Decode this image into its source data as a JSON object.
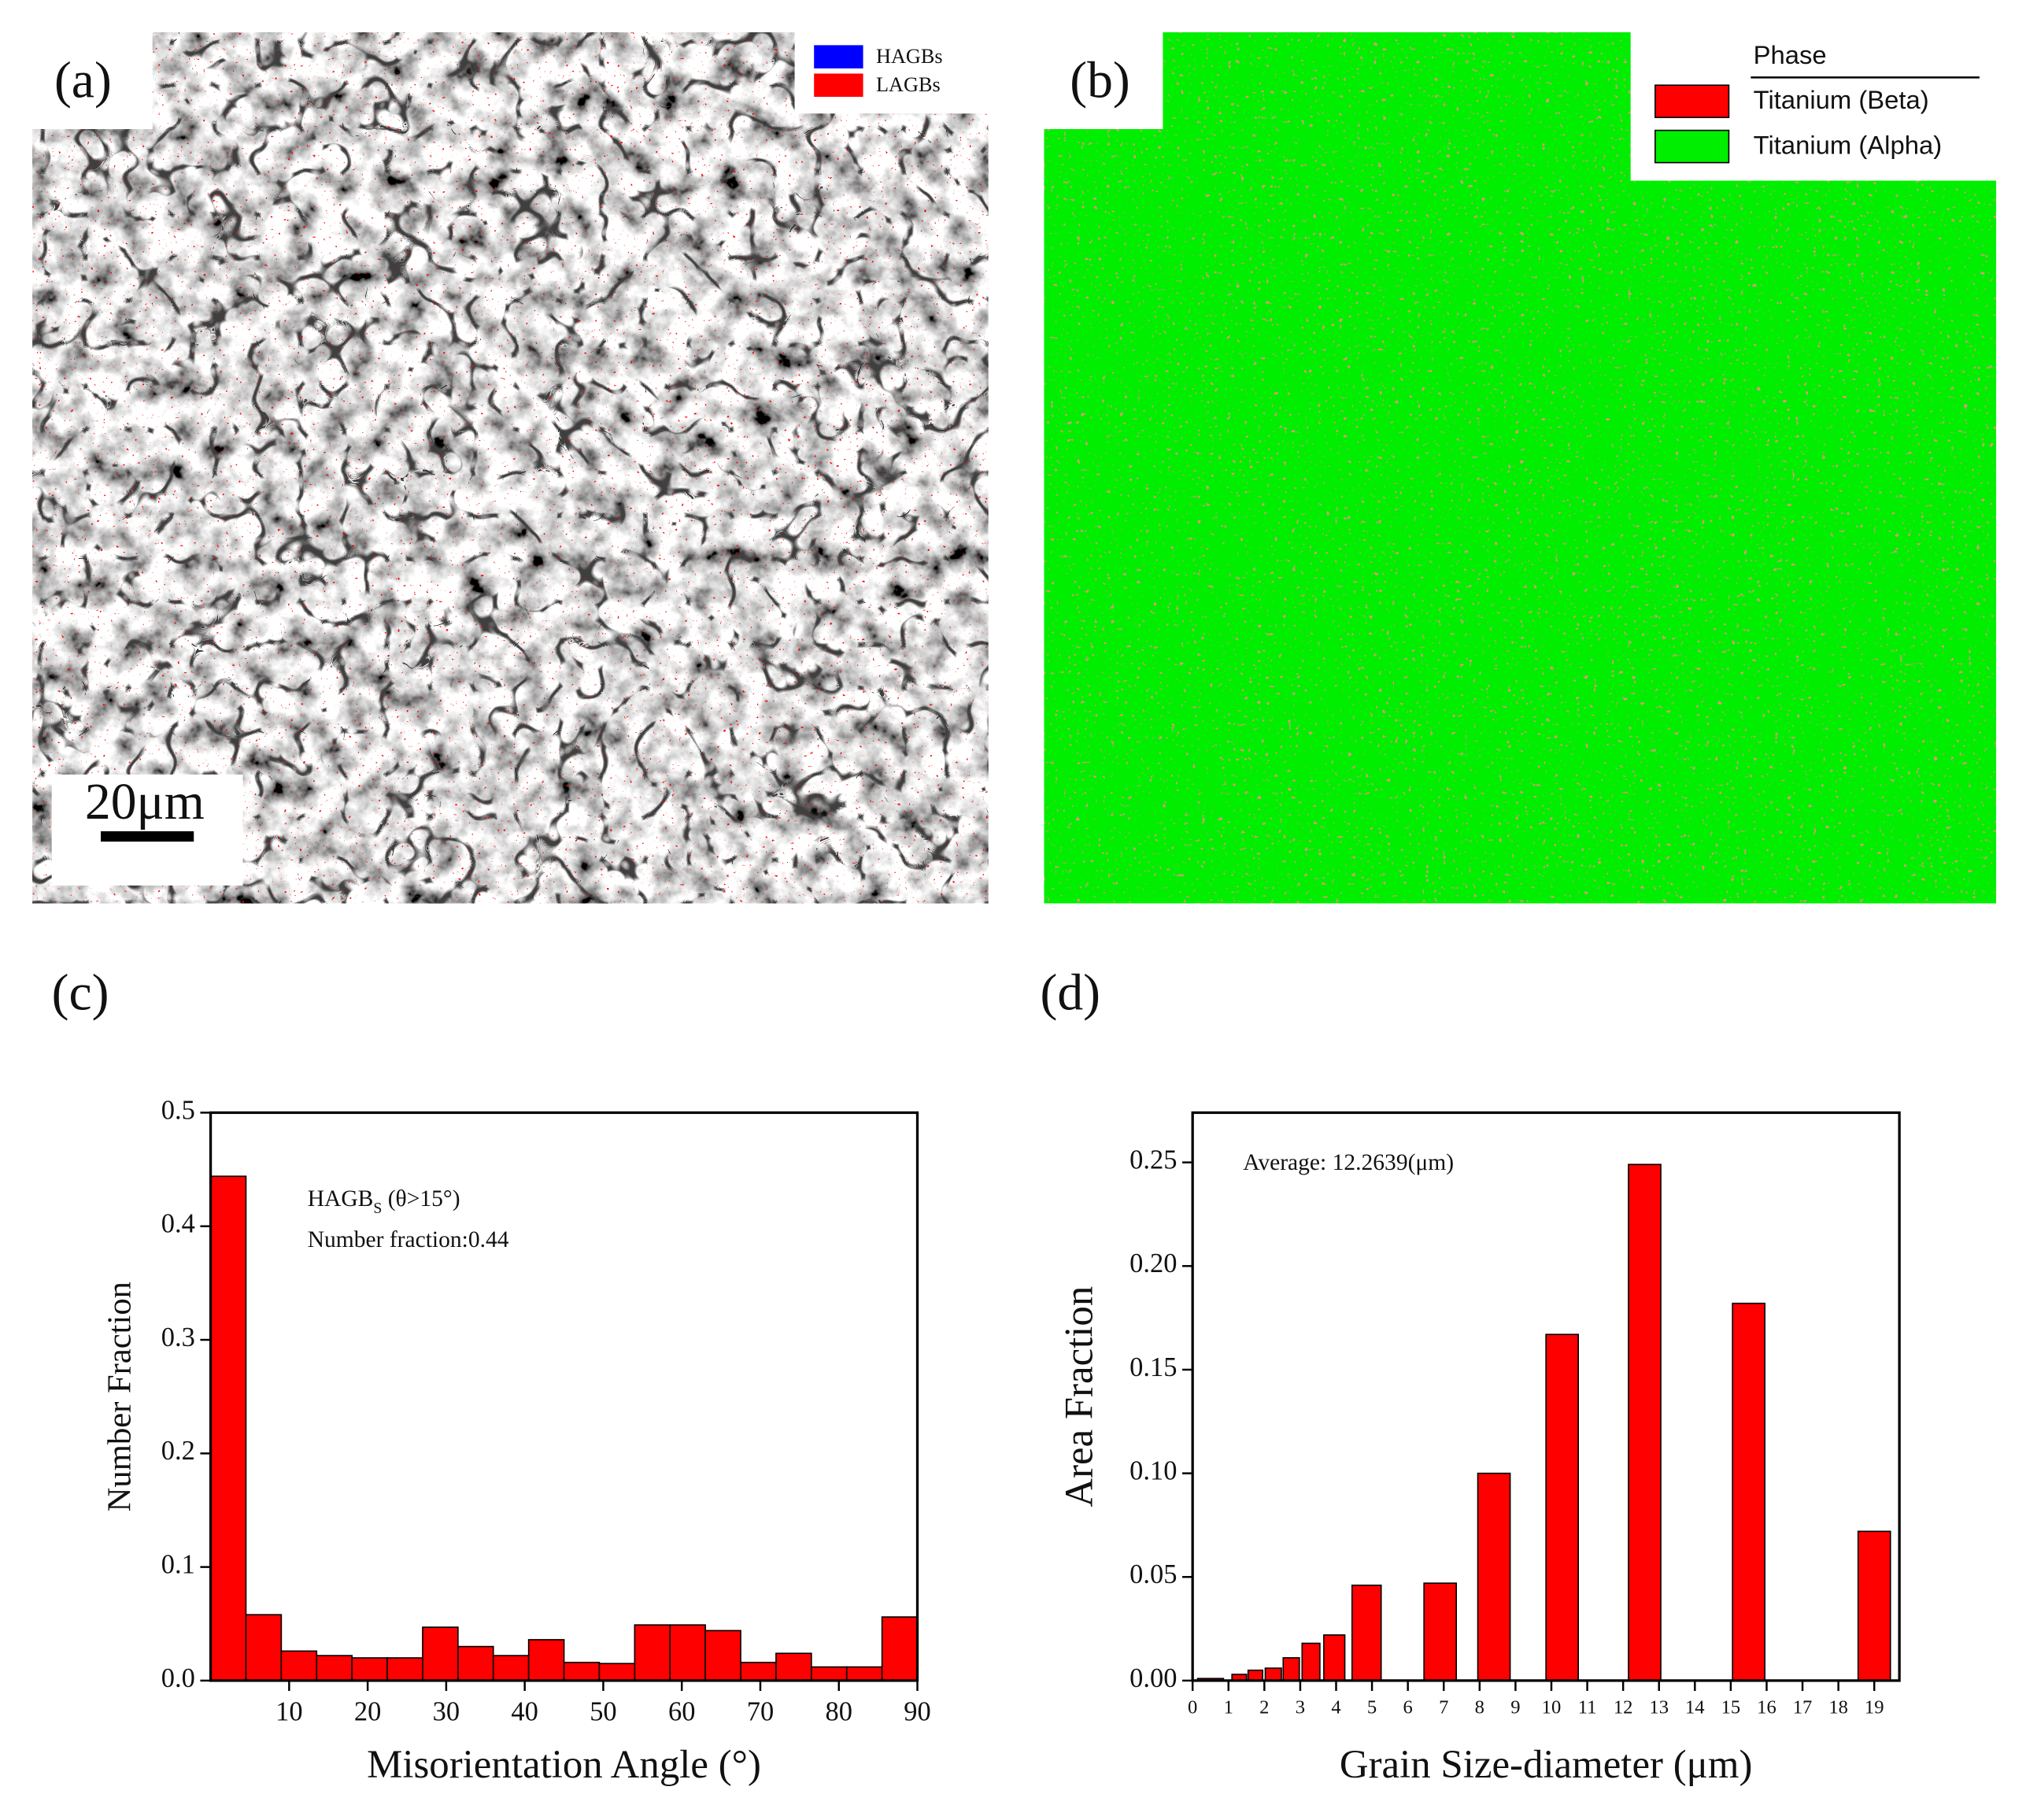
{
  "panels": {
    "a": {
      "label": "(a)",
      "legend": [
        {
          "name": "HAGBs",
          "color": "#0000ff"
        },
        {
          "name": "LAGBs",
          "color": "#ff0000"
        }
      ],
      "scale_bar": "20μm"
    },
    "b": {
      "label": "(b)",
      "legend_title": "Phase",
      "legend": [
        {
          "name": "Titanium (Beta)",
          "color": "#ff0000"
        },
        {
          "name": "Titanium (Alpha)",
          "color": "#00ee00"
        }
      ]
    }
  },
  "chart_data": [
    {
      "type": "histogram",
      "label": "(c)",
      "x_label": "Misorientation Angle (°)",
      "y_label": "Number Fraction",
      "annotation": {
        "line1": [
          "HAGB",
          "S",
          " (θ>15°)"
        ],
        "line2": "Number fraction:0.44"
      },
      "color": "#ff0000",
      "bins": [
        0,
        4.5,
        9,
        13.5,
        18,
        22.5,
        27,
        31.5,
        36,
        40.5,
        45,
        49.5,
        54,
        58.5,
        63,
        67.5,
        72,
        76.5,
        81,
        85.5,
        90
      ],
      "values": [
        0.444,
        0.058,
        0.026,
        0.022,
        0.02,
        0.02,
        0.047,
        0.03,
        0.022,
        0.036,
        0.016,
        0.015,
        0.049,
        0.049,
        0.044,
        0.016,
        0.024,
        0.012,
        0.012,
        0.056
      ],
      "xlim": [
        0,
        90
      ],
      "xticks": [
        10,
        20,
        30,
        40,
        50,
        60,
        70,
        80,
        90
      ],
      "ylim": [
        0,
        0.5
      ],
      "yticks": [
        {
          "value": 0,
          "label": "0.0"
        },
        0.1,
        0.2,
        0.3,
        0.4,
        0.5
      ]
    },
    {
      "type": "bar",
      "label": "(d)",
      "x_label": "Grain Size-diameter (μm)",
      "y_label": "Area Fraction",
      "annotation": "Average: 12.2639(μm)",
      "color": "#ff0000",
      "x": [
        0.5,
        1.3,
        1.75,
        2.25,
        2.75,
        3.3,
        3.95,
        4.85,
        6.9,
        8.4,
        10.3,
        12.6,
        15.5,
        19.0
      ],
      "values": [
        0.001,
        0.003,
        0.005,
        0.006,
        0.011,
        0.018,
        0.022,
        0.046,
        0.047,
        0.1,
        0.167,
        0.249,
        0.182,
        0.072
      ],
      "xlim": [
        0,
        19.7
      ],
      "xticks": [
        0,
        1,
        2,
        3,
        4,
        5,
        6,
        7,
        8,
        9,
        10,
        11,
        12,
        13,
        14,
        15,
        16,
        17,
        18,
        19
      ],
      "ylim": [
        0,
        0.274
      ],
      "yticks": [
        {
          "value": 0,
          "label": "0.00"
        },
        0.05,
        {
          "value": 0.1,
          "label": "0.10"
        },
        0.15,
        {
          "value": 0.2,
          "label": "0.20"
        },
        0.25
      ]
    }
  ]
}
